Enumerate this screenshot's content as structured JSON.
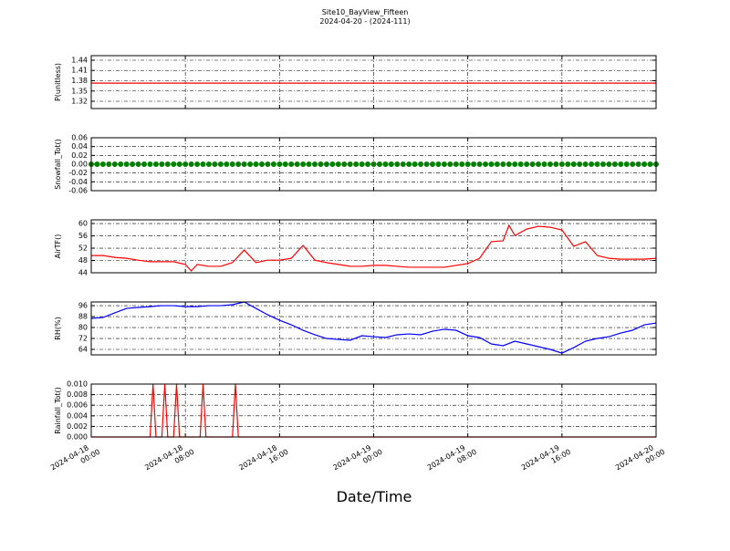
{
  "title": "Site10_BayView_Fifteen",
  "subtitle": "2024-04-20 - (2024-111)",
  "xlabel": "Date/Time",
  "xlim": [
    0,
    48
  ],
  "xticks": [
    {
      "value": 0,
      "label": "2024-04-18 00:00"
    },
    {
      "value": 8,
      "label": "2024-04-18 08:00"
    },
    {
      "value": 16,
      "label": "2024-04-18 16:00"
    },
    {
      "value": 24,
      "label": "2024-04-19 00:00"
    },
    {
      "value": 32,
      "label": "2024-04-19 08:00"
    },
    {
      "value": 40,
      "label": "2024-04-19 16:00"
    },
    {
      "value": 48,
      "label": "2024-04-20 00:00"
    }
  ],
  "grid": true,
  "chart_data": [
    {
      "type": "line",
      "ylabel": "P(unitless)",
      "ylim": [
        1.2987,
        1.4533
      ],
      "yticks": [
        1.32,
        1.35,
        1.38,
        1.41,
        1.44
      ],
      "x": [
        0,
        48
      ],
      "series": [
        {
          "color": "#ff0000",
          "values": [
            1.373,
            1.373
          ]
        }
      ]
    },
    {
      "type": "scatter",
      "ylabel": "Snowfall_Tot()",
      "ylim": [
        -0.06,
        0.06
      ],
      "yticks": [
        -0.06,
        -0.04,
        -0.02,
        {
          "value": 0,
          "label": "0.00"
        },
        0.02,
        0.04,
        0.06
      ],
      "x": [
        0,
        0.5,
        1,
        1.5,
        2,
        2.5,
        3,
        3.5,
        4,
        4.5,
        5,
        5.5,
        6,
        6.5,
        7,
        7.5,
        8,
        8.5,
        9,
        9.5,
        10,
        10.5,
        11,
        11.5,
        12,
        12.5,
        13,
        13.5,
        14,
        14.5,
        15,
        15.5,
        16,
        16.5,
        17,
        17.5,
        18,
        18.5,
        19,
        19.5,
        20,
        20.5,
        21,
        21.5,
        22,
        22.5,
        23,
        23.5,
        24,
        24.5,
        25,
        25.5,
        26,
        26.5,
        27,
        27.5,
        28,
        28.5,
        29,
        29.5,
        30,
        30.5,
        31,
        31.5,
        32,
        32.5,
        33,
        33.5,
        34,
        34.5,
        35,
        35.5,
        36,
        36.5,
        37,
        37.5,
        38,
        38.5,
        39,
        39.5,
        40,
        40.5,
        41,
        41.5,
        42,
        42.5,
        43,
        43.5,
        44,
        44.5,
        45,
        45.5,
        46,
        46.5,
        47,
        47.5,
        48
      ],
      "series": [
        {
          "color": "#008000",
          "values": [
            0,
            0,
            0,
            0,
            0,
            0,
            0,
            0,
            0,
            0,
            0,
            0,
            0,
            0,
            0,
            0,
            0,
            0,
            0,
            0,
            0,
            0,
            0,
            0,
            0,
            0,
            0,
            0,
            0,
            0,
            0,
            0,
            0,
            0,
            0,
            0,
            0,
            0,
            0,
            0,
            0,
            0,
            0,
            0,
            0,
            0,
            0,
            0,
            0,
            0,
            0,
            0,
            0,
            0,
            0,
            0,
            0,
            0,
            0,
            0,
            0,
            0,
            0,
            0,
            0,
            0,
            0,
            0,
            0,
            0,
            0,
            0,
            0,
            0,
            0,
            0,
            0,
            0,
            0,
            0,
            0,
            0,
            0,
            0,
            0,
            0,
            0,
            0,
            0,
            0,
            0,
            0,
            0,
            0,
            0,
            0,
            0
          ]
        }
      ]
    },
    {
      "type": "line",
      "ylabel": "AirTF()",
      "ylim": [
        44,
        61.2
      ],
      "yticks": [
        44,
        48,
        52,
        56,
        60
      ],
      "x": [
        0,
        1,
        2,
        3,
        4,
        5,
        6,
        7,
        8,
        8.5,
        9,
        10,
        11,
        12,
        13,
        14,
        15,
        16,
        17,
        18,
        19,
        20,
        21,
        22,
        23,
        24,
        25,
        26,
        27,
        28,
        29,
        30,
        31,
        32,
        33,
        34,
        35,
        35.5,
        36,
        37,
        38,
        39,
        40,
        41,
        42,
        43,
        44,
        45,
        46,
        47,
        48
      ],
      "series": [
        {
          "color": "#ff0000",
          "values": [
            49.6,
            49.6,
            49.0,
            48.7,
            48.1,
            47.6,
            47.6,
            47.6,
            46.7,
            44.6,
            46.7,
            46.1,
            46.1,
            47.3,
            51.4,
            47.3,
            48.1,
            48.1,
            48.7,
            52.9,
            48.1,
            47.3,
            46.7,
            46.1,
            46.1,
            46.4,
            46.4,
            46.1,
            45.8,
            45.8,
            45.8,
            45.8,
            46.4,
            47.0,
            48.7,
            54.1,
            54.4,
            59.4,
            56.1,
            58.2,
            59.1,
            58.8,
            57.9,
            52.6,
            54.1,
            49.6,
            48.7,
            48.4,
            48.4,
            48.4,
            48.7
          ]
        }
      ]
    },
    {
      "type": "line",
      "ylabel": "RH(%)",
      "ylim": [
        60,
        98.7
      ],
      "yticks": [
        64,
        72,
        80,
        88,
        96
      ],
      "x": [
        0,
        1,
        2,
        3,
        4,
        5,
        6,
        7,
        8,
        9,
        10,
        11,
        12,
        13,
        14,
        15,
        16,
        17,
        18,
        19,
        20,
        21,
        22,
        23,
        24,
        25,
        26,
        27,
        28,
        29,
        30,
        31,
        32,
        33,
        34,
        35,
        36,
        37,
        38,
        39,
        40,
        41,
        42,
        43,
        44,
        45,
        46,
        47,
        48
      ],
      "series": [
        {
          "color": "#0000ff",
          "values": [
            86.7,
            87.3,
            90.7,
            94,
            94.7,
            95.3,
            96,
            96,
            95.3,
            95.3,
            96,
            96,
            96.7,
            98.7,
            94,
            89.3,
            85.3,
            82,
            78,
            74.7,
            72,
            71.3,
            70.7,
            74,
            73.3,
            72.7,
            74.7,
            75.3,
            74.7,
            77.3,
            78.7,
            78,
            74,
            72.7,
            68,
            66.7,
            70,
            68,
            66,
            64,
            61.3,
            65.3,
            70,
            72,
            73.3,
            76,
            78,
            82,
            83.3
          ]
        }
      ]
    },
    {
      "type": "line",
      "ylabel": "Rainfall_Tot()",
      "ylim": [
        0,
        0.01
      ],
      "yticks": [
        {
          "value": 0,
          "label": "0.000"
        },
        0.002,
        0.004,
        0.006,
        0.008,
        {
          "value": 0.01,
          "label": "0.010"
        }
      ],
      "x": [
        0,
        5,
        5.25,
        5.5,
        6,
        6.25,
        6.5,
        7,
        7.25,
        7.5,
        9.25,
        9.5,
        9.75,
        12,
        12.25,
        12.5,
        48
      ],
      "series": [
        {
          "color": "#ff0000",
          "values": [
            0,
            0,
            0.01,
            0,
            0,
            0.01,
            0,
            0,
            0.01,
            0,
            0,
            0.01,
            0,
            0,
            0.01,
            0,
            0
          ]
        }
      ]
    }
  ]
}
